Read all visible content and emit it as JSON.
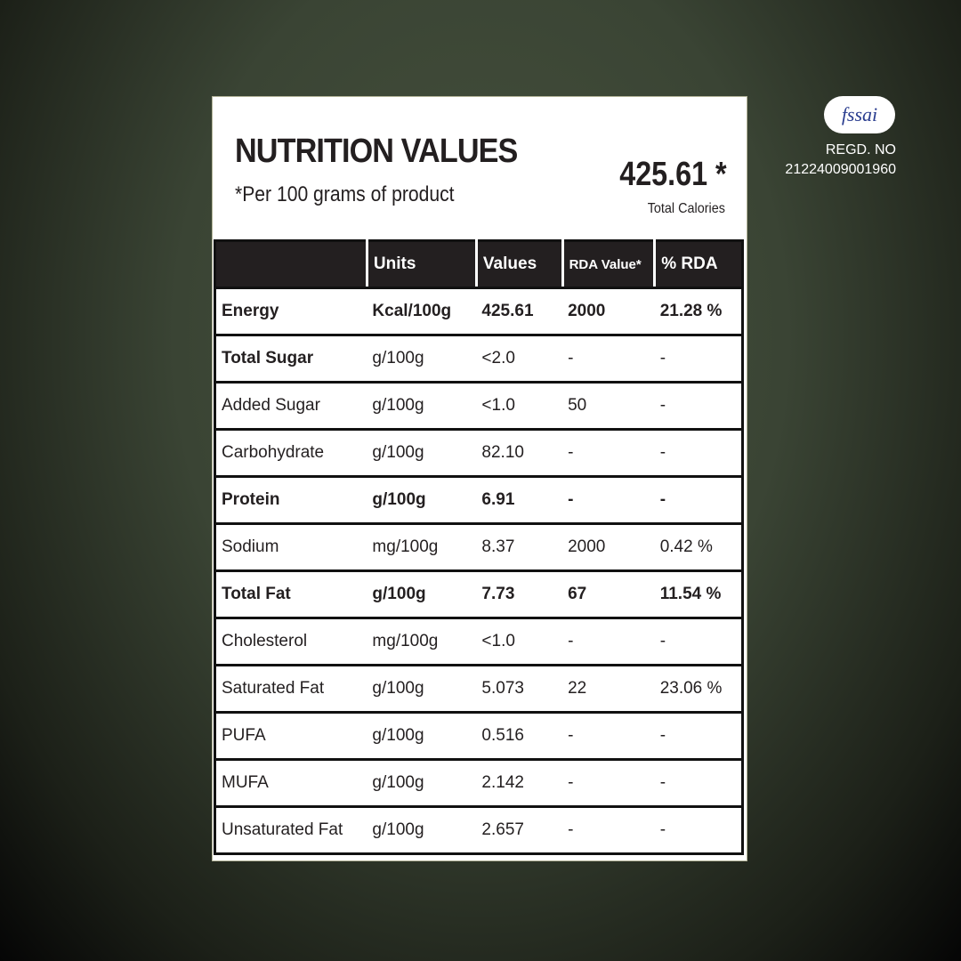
{
  "header": {
    "title": "NUTRITION VALUES",
    "subtitle": "*Per 100 grams of product",
    "total_calories_value": "425.61 *",
    "total_calories_label": "Total Calories"
  },
  "certification": {
    "logo": "fssai",
    "regd_label": "REGD. NO",
    "regd_number": "21224009001960"
  },
  "table": {
    "columns": [
      "",
      "Units",
      "Values",
      "RDA Value*",
      "% RDA"
    ],
    "rows": [
      [
        "Energy",
        "Kcal/100g",
        "425.61",
        "2000",
        "21.28 %"
      ],
      [
        "Total Sugar",
        "g/100g",
        "<2.0",
        "-",
        "-"
      ],
      [
        "Added Sugar",
        "g/100g",
        "<1.0",
        "50",
        "-"
      ],
      [
        "Carbohydrate",
        "g/100g",
        "82.10",
        "-",
        "-"
      ],
      [
        "Protein",
        "g/100g",
        "6.91",
        "-",
        "-"
      ],
      [
        "Sodium",
        "mg/100g",
        "8.37",
        "2000",
        "0.42 %"
      ],
      [
        "Total Fat",
        "g/100g",
        "7.73",
        "67",
        "11.54 %"
      ],
      [
        "Cholesterol",
        "mg/100g",
        "<1.0",
        "-",
        "-"
      ],
      [
        "Saturated Fat",
        "g/100g",
        "5.073",
        "22",
        "23.06 %"
      ],
      [
        "PUFA",
        "g/100g",
        "0.516",
        "-",
        "-"
      ],
      [
        "MUFA",
        "g/100g",
        "2.142",
        "-",
        "-"
      ],
      [
        "Unsaturated Fat",
        "g/100g",
        "2.657",
        "-",
        "-"
      ]
    ]
  }
}
